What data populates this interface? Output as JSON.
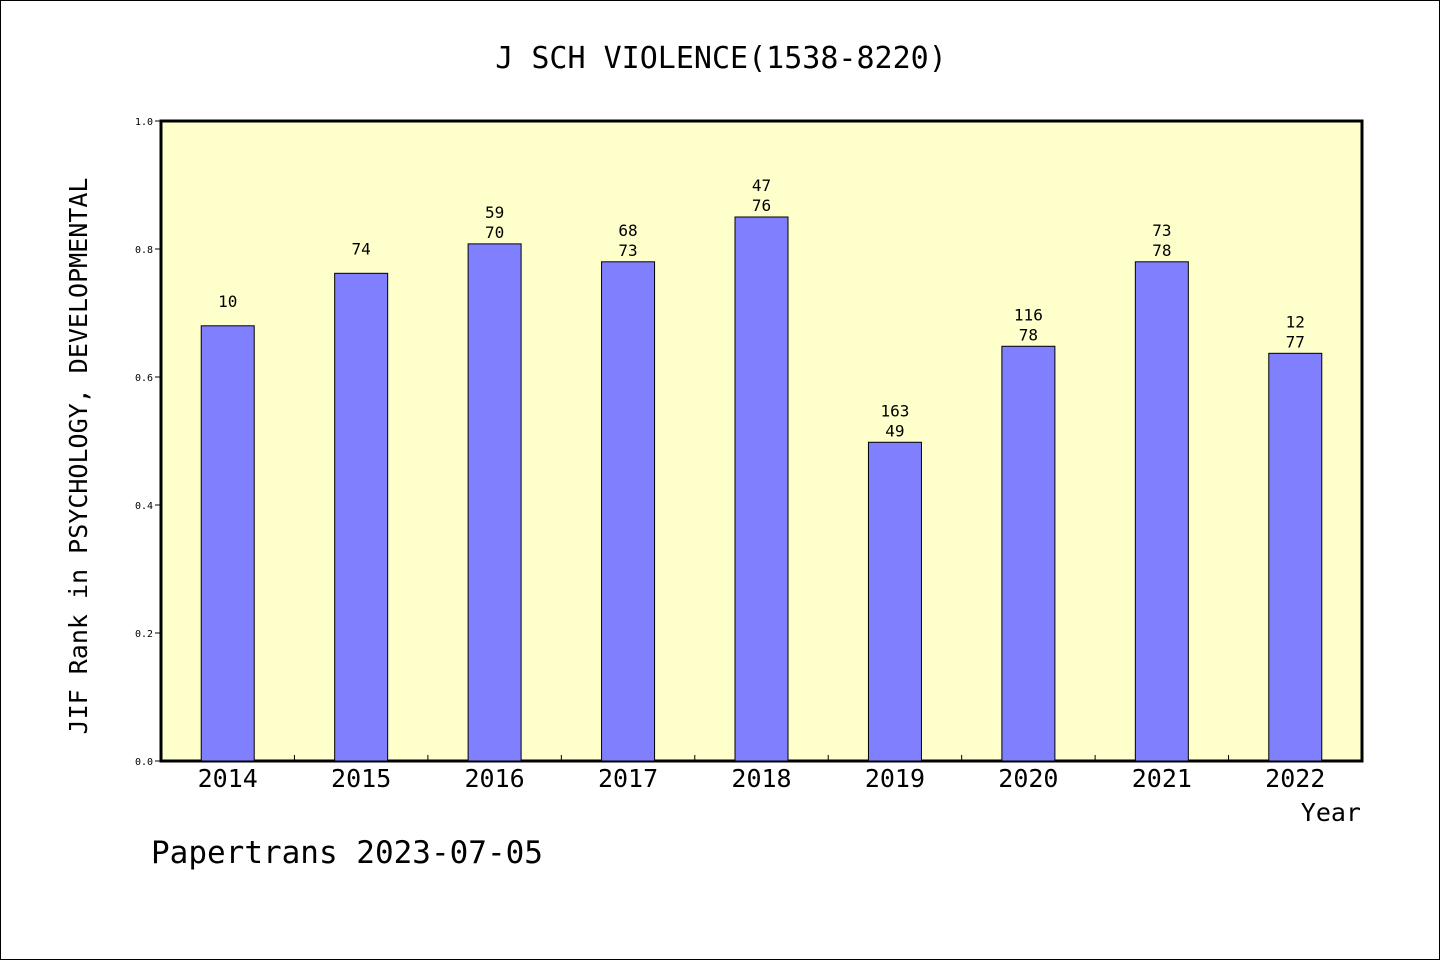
{
  "chart_data": {
    "type": "bar",
    "title": "J SCH VIOLENCE(1538-8220)",
    "xlabel": "Year",
    "ylabel": "JIF Rank in PSYCHOLOGY, DEVELOPMENTAL",
    "ylim": [
      0,
      1.0
    ],
    "yticks": [
      "0.0",
      "0.2",
      "0.4",
      "0.6",
      "0.8",
      "1.0"
    ],
    "ytick_values": [
      0,
      0.2,
      0.4,
      0.6,
      0.8,
      1.0
    ],
    "categories": [
      "2014",
      "2015",
      "2016",
      "2017",
      "2018",
      "2019",
      "2020",
      "2021",
      "2022"
    ],
    "values": [
      0.68,
      0.762,
      0.808,
      0.78,
      0.85,
      0.498,
      0.648,
      0.78,
      0.637
    ],
    "labels_top": [
      "10",
      "74",
      "59",
      "68",
      "47",
      "163",
      "116",
      "73",
      "12"
    ],
    "labels_bottom": [
      "",
      "",
      "70",
      "73",
      "76",
      "49",
      "78",
      "78",
      "77"
    ],
    "grid": false,
    "colors": {
      "plot_background": "#ffffcc",
      "bar_fill": "#8080ff",
      "bar_stroke": "#000000",
      "axis": "#000000"
    }
  },
  "footer": {
    "text": "Papertrans 2023-07-05"
  }
}
